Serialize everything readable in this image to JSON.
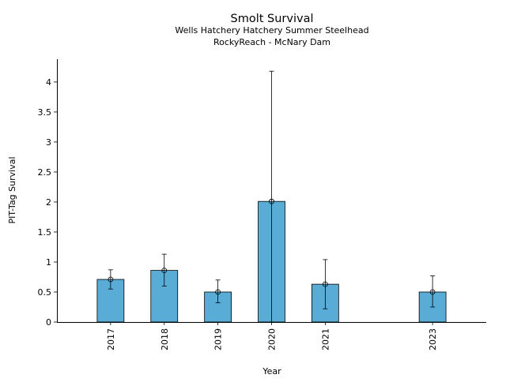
{
  "chart_data": {
    "type": "bar",
    "title": "Smolt Survival",
    "subtitle_lines": [
      "Wells Hatchery Hatchery Summer Steelhead",
      "RockyReach - McNary Dam"
    ],
    "xlabel": "Year",
    "ylabel": "PIT-Tag Survival",
    "categories": [
      "2017",
      "2018",
      "2019",
      "2020",
      "2021",
      "2023"
    ],
    "x": [
      2017,
      2018,
      2019,
      2020,
      2021,
      2023
    ],
    "values": [
      0.71,
      0.86,
      0.5,
      2.01,
      0.63,
      0.5
    ],
    "error_low": [
      0.55,
      0.6,
      0.32,
      0.0,
      0.22,
      0.25
    ],
    "error_high": [
      0.87,
      1.13,
      0.7,
      4.18,
      1.04,
      0.77
    ],
    "xlim": [
      2016.0,
      2024.0
    ],
    "ylim": [
      0,
      4.38
    ],
    "yticks": [
      0,
      0.5,
      1,
      1.5,
      2,
      2.5,
      3,
      3.5,
      4
    ],
    "ytick_labels": [
      "0",
      "0.5",
      "1",
      "1.5",
      "2",
      "2.5",
      "3",
      "3.5",
      "4"
    ],
    "grid": false,
    "colors": {
      "bar": "#59acd6",
      "edge": "#000000"
    }
  }
}
